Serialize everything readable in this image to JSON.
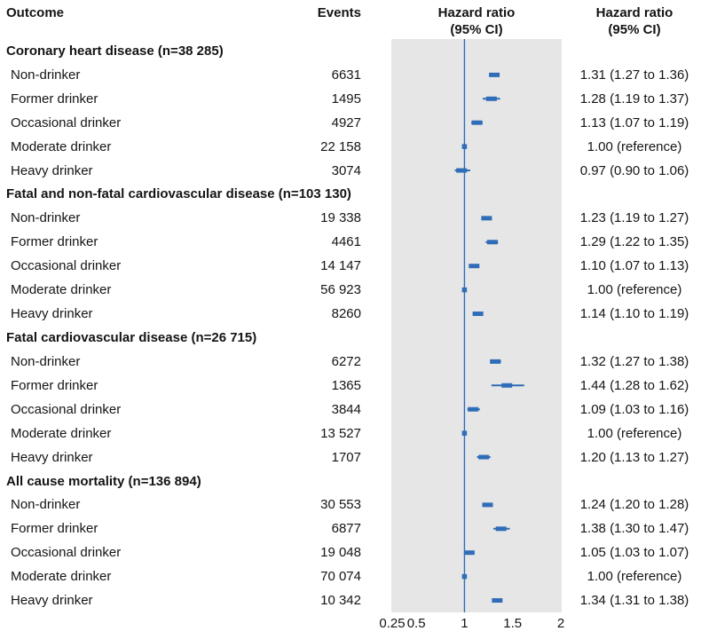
{
  "headers": {
    "outcome": "Outcome",
    "events": "Events",
    "hazard_ratio_plot_line1": "Hazard ratio",
    "hazard_ratio_plot_line2": "(95% CI)",
    "hazard_ratio_text_line1": "Hazard ratio",
    "hazard_ratio_text_line2": "(95% CI)"
  },
  "colors": {
    "marker": "#2f6db8",
    "reference_line": "#2f6db8",
    "plot_background": "#e6e6e6",
    "text": "#141414"
  },
  "chart_data": {
    "type": "forest",
    "title": "",
    "x_axis": {
      "scale": "linear",
      "min": 0.25,
      "max": 2,
      "tick_values": [
        0.25,
        0.5,
        1,
        1.5,
        2
      ],
      "tick_labels": [
        "0.25",
        "0.5",
        "1",
        "1.5",
        "2"
      ],
      "reference_line": 1
    },
    "columns": [
      "Outcome",
      "Events",
      "Hazard ratio (95% CI)",
      "Hazard ratio (95% CI)"
    ],
    "groups": [
      {
        "label": "Coronary heart disease (n=38 285)",
        "rows": [
          {
            "label": "Non-drinker",
            "events": "6631",
            "hr": 1.31,
            "lo": 1.27,
            "hi": 1.36,
            "ci_text": "1.31 (1.27 to 1.36)",
            "reference": false
          },
          {
            "label": "Former drinker",
            "events": "1495",
            "hr": 1.28,
            "lo": 1.19,
            "hi": 1.37,
            "ci_text": "1.28 (1.19 to 1.37)",
            "reference": false
          },
          {
            "label": "Occasional drinker",
            "events": "4927",
            "hr": 1.13,
            "lo": 1.07,
            "hi": 1.19,
            "ci_text": "1.13 (1.07 to 1.19)",
            "reference": false
          },
          {
            "label": "Moderate drinker",
            "events": "22 158",
            "hr": 1.0,
            "lo": 1.0,
            "hi": 1.0,
            "ci_text": "1.00 (reference)",
            "reference": true
          },
          {
            "label": "Heavy drinker",
            "events": "3074",
            "hr": 0.97,
            "lo": 0.9,
            "hi": 1.06,
            "ci_text": "0.97 (0.90 to 1.06)",
            "reference": false
          }
        ]
      },
      {
        "label": "Fatal and non-fatal cardiovascular disease (n=103 130)",
        "rows": [
          {
            "label": "Non-drinker",
            "events": "19 338",
            "hr": 1.23,
            "lo": 1.19,
            "hi": 1.27,
            "ci_text": "1.23 (1.19 to 1.27)",
            "reference": false
          },
          {
            "label": "Former drinker",
            "events": "4461",
            "hr": 1.29,
            "lo": 1.22,
            "hi": 1.35,
            "ci_text": "1.29 (1.22 to 1.35)",
            "reference": false
          },
          {
            "label": "Occasional drinker",
            "events": "14 147",
            "hr": 1.1,
            "lo": 1.07,
            "hi": 1.13,
            "ci_text": "1.10 (1.07 to 1.13)",
            "reference": false
          },
          {
            "label": "Moderate drinker",
            "events": "56 923",
            "hr": 1.0,
            "lo": 1.0,
            "hi": 1.0,
            "ci_text": "1.00 (reference)",
            "reference": true
          },
          {
            "label": "Heavy drinker",
            "events": "8260",
            "hr": 1.14,
            "lo": 1.1,
            "hi": 1.19,
            "ci_text": "1.14 (1.10 to 1.19)",
            "reference": false
          }
        ]
      },
      {
        "label": "Fatal cardiovascular disease (n=26 715)",
        "rows": [
          {
            "label": "Non-drinker",
            "events": "6272",
            "hr": 1.32,
            "lo": 1.27,
            "hi": 1.38,
            "ci_text": "1.32 (1.27 to 1.38)",
            "reference": false
          },
          {
            "label": "Former drinker",
            "events": "1365",
            "hr": 1.44,
            "lo": 1.28,
            "hi": 1.62,
            "ci_text": "1.44 (1.28 to 1.62)",
            "reference": false
          },
          {
            "label": "Occasional drinker",
            "events": "3844",
            "hr": 1.09,
            "lo": 1.03,
            "hi": 1.16,
            "ci_text": "1.09 (1.03 to 1.16)",
            "reference": false
          },
          {
            "label": "Moderate drinker",
            "events": "13 527",
            "hr": 1.0,
            "lo": 1.0,
            "hi": 1.0,
            "ci_text": "1.00 (reference)",
            "reference": true
          },
          {
            "label": "Heavy drinker",
            "events": "1707",
            "hr": 1.2,
            "lo": 1.13,
            "hi": 1.27,
            "ci_text": "1.20 (1.13 to 1.27)",
            "reference": false
          }
        ]
      },
      {
        "label": "All cause mortality (n=136 894)",
        "rows": [
          {
            "label": "Non-drinker",
            "events": "30 553",
            "hr": 1.24,
            "lo": 1.2,
            "hi": 1.28,
            "ci_text": "1.24 (1.20 to 1.28)",
            "reference": false
          },
          {
            "label": "Former drinker",
            "events": "6877",
            "hr": 1.38,
            "lo": 1.3,
            "hi": 1.47,
            "ci_text": "1.38 (1.30 to 1.47)",
            "reference": false
          },
          {
            "label": "Occasional drinker",
            "events": "19 048",
            "hr": 1.05,
            "lo": 1.03,
            "hi": 1.07,
            "ci_text": "1.05 (1.03 to 1.07)",
            "reference": false
          },
          {
            "label": "Moderate drinker",
            "events": "70 074",
            "hr": 1.0,
            "lo": 1.0,
            "hi": 1.0,
            "ci_text": "1.00 (reference)",
            "reference": true
          },
          {
            "label": "Heavy drinker",
            "events": "10 342",
            "hr": 1.34,
            "lo": 1.31,
            "hi": 1.38,
            "ci_text": "1.34 (1.31 to 1.38)",
            "reference": false
          }
        ]
      }
    ]
  }
}
